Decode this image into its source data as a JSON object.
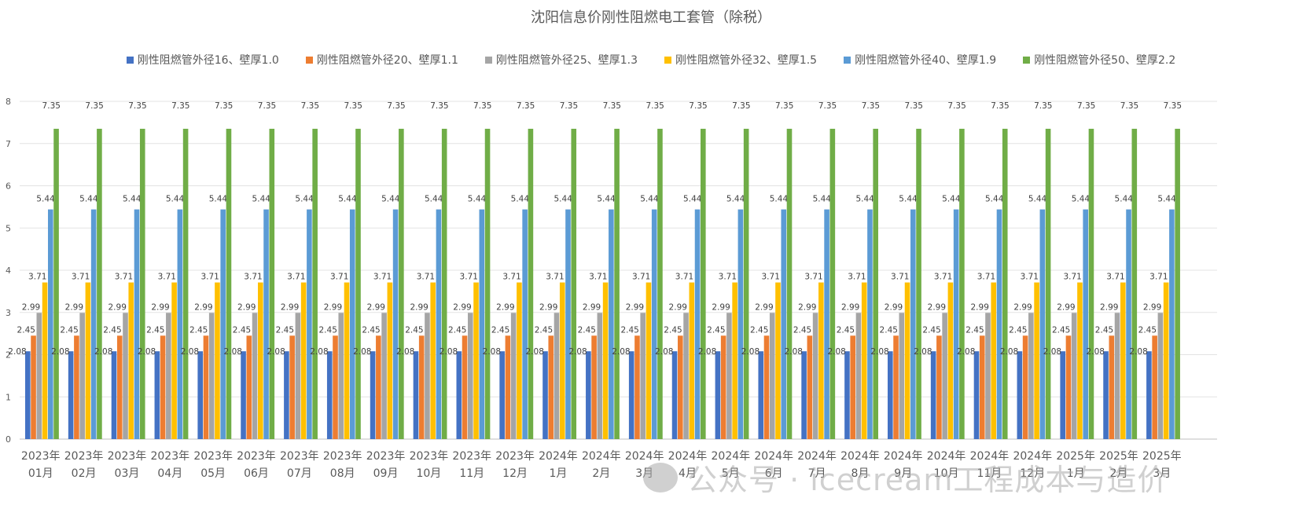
{
  "chart_data": {
    "type": "bar",
    "title": "沈阳信息价刚性阻燃电工套管（除税）",
    "xlabel": "",
    "ylabel": "",
    "ylim": [
      0,
      8
    ],
    "yticks": [
      "0",
      "1",
      "2",
      "3",
      "4",
      "5",
      "6",
      "7",
      "8"
    ],
    "grid": true,
    "legend_position": "top",
    "categories": [
      [
        "2023年",
        "01月"
      ],
      [
        "2023年",
        "02月"
      ],
      [
        "2023年",
        "03月"
      ],
      [
        "2023年",
        "04月"
      ],
      [
        "2023年",
        "05月"
      ],
      [
        "2023年",
        "06月"
      ],
      [
        "2023年",
        "07月"
      ],
      [
        "2023年",
        "08月"
      ],
      [
        "2023年",
        "09月"
      ],
      [
        "2023年",
        "10月"
      ],
      [
        "2023年",
        "11月"
      ],
      [
        "2023年",
        "12月"
      ],
      [
        "2024年",
        "1月"
      ],
      [
        "2024年",
        "2月"
      ],
      [
        "2024年",
        "3月"
      ],
      [
        "2024年",
        "4月"
      ],
      [
        "2024年",
        "5月"
      ],
      [
        "2024年",
        "6月"
      ],
      [
        "2024年",
        "7月"
      ],
      [
        "2024年",
        "8月"
      ],
      [
        "2024年",
        "9月"
      ],
      [
        "2024年",
        "10月"
      ],
      [
        "2024年",
        "11月"
      ],
      [
        "2024年",
        "12月"
      ],
      [
        "2025年",
        "1月"
      ],
      [
        "2025年",
        "2月"
      ],
      [
        "2025年",
        "3月"
      ]
    ],
    "series": [
      {
        "name": "刚性阻燃管外径16、壁厚1.0",
        "color": "#4472C4",
        "values": [
          2.08,
          2.08,
          2.08,
          2.08,
          2.08,
          2.08,
          2.08,
          2.08,
          2.08,
          2.08,
          2.08,
          2.08,
          2.08,
          2.08,
          2.08,
          2.08,
          2.08,
          2.08,
          2.08,
          2.08,
          2.08,
          2.08,
          2.08,
          2.08,
          2.08,
          2.08,
          2.08
        ]
      },
      {
        "name": "刚性阻燃管外径20、壁厚1.1",
        "color": "#ED7D31",
        "values": [
          2.45,
          2.45,
          2.45,
          2.45,
          2.45,
          2.45,
          2.45,
          2.45,
          2.45,
          2.45,
          2.45,
          2.45,
          2.45,
          2.45,
          2.45,
          2.45,
          2.45,
          2.45,
          2.45,
          2.45,
          2.45,
          2.45,
          2.45,
          2.45,
          2.45,
          2.45,
          2.45
        ]
      },
      {
        "name": "刚性阻燃管外径25、壁厚1.3",
        "color": "#A5A5A5",
        "values": [
          2.99,
          2.99,
          2.99,
          2.99,
          2.99,
          2.99,
          2.99,
          2.99,
          2.99,
          2.99,
          2.99,
          2.99,
          2.99,
          2.99,
          2.99,
          2.99,
          2.99,
          2.99,
          2.99,
          2.99,
          2.99,
          2.99,
          2.99,
          2.99,
          2.99,
          2.99,
          2.99
        ]
      },
      {
        "name": "刚性阻燃管外径32、壁厚1.5",
        "color": "#FFC000",
        "values": [
          3.71,
          3.71,
          3.71,
          3.71,
          3.71,
          3.71,
          3.71,
          3.71,
          3.71,
          3.71,
          3.71,
          3.71,
          3.71,
          3.71,
          3.71,
          3.71,
          3.71,
          3.71,
          3.71,
          3.71,
          3.71,
          3.71,
          3.71,
          3.71,
          3.71,
          3.71,
          3.71
        ]
      },
      {
        "name": "刚性阻燃管外径40、壁厚1.9",
        "color": "#5B9BD5",
        "values": [
          5.44,
          5.44,
          5.44,
          5.44,
          5.44,
          5.44,
          5.44,
          5.44,
          5.44,
          5.44,
          5.44,
          5.44,
          5.44,
          5.44,
          5.44,
          5.44,
          5.44,
          5.44,
          5.44,
          5.44,
          5.44,
          5.44,
          5.44,
          5.44,
          5.44,
          5.44,
          5.44
        ]
      },
      {
        "name": "刚性阻燃管外径50、壁厚2.2",
        "color": "#70AD47",
        "values": [
          7.35,
          7.35,
          7.35,
          7.35,
          7.35,
          7.35,
          7.35,
          7.35,
          7.35,
          7.35,
          7.35,
          7.35,
          7.35,
          7.35,
          7.35,
          7.35,
          7.35,
          7.35,
          7.35,
          7.35,
          7.35,
          7.35,
          7.35,
          7.35,
          7.35,
          7.35,
          7.35
        ]
      }
    ]
  },
  "watermark": {
    "text": "公众号 · icecream工程成本与造价",
    "icon": "wechat-icon"
  }
}
